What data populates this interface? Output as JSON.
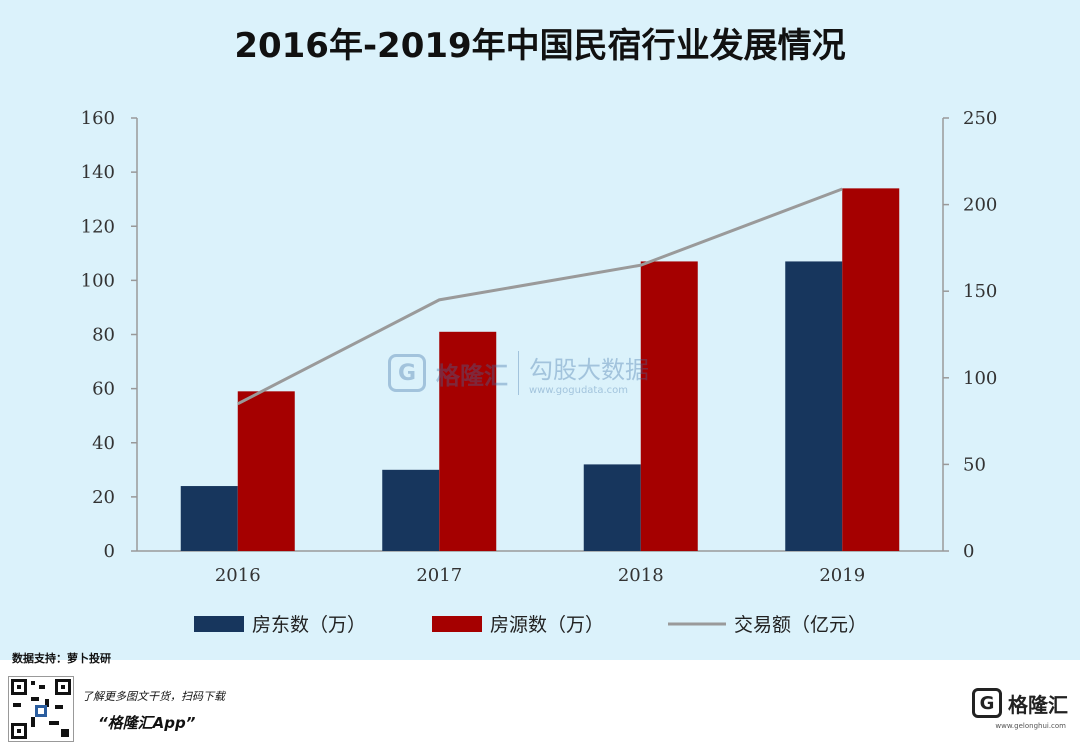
{
  "title": "2016年-2019年中国民宿行业发展情况",
  "chart_data": {
    "type": "bar",
    "title": "2016年-2019年中国民宿行业发展情况",
    "categories": [
      "2016",
      "2017",
      "2018",
      "2019"
    ],
    "series": [
      {
        "name": "房东数（万）",
        "type": "bar",
        "axis": "left",
        "color": "#17365d",
        "values": [
          24,
          30,
          32,
          107
        ]
      },
      {
        "name": "房源数（万）",
        "type": "bar",
        "axis": "left",
        "color": "#a50000",
        "values": [
          59,
          81,
          107,
          134
        ]
      },
      {
        "name": "交易额（亿元）",
        "type": "line",
        "axis": "right",
        "color": "#9a9a9a",
        "values": [
          85,
          145,
          165,
          209
        ]
      }
    ],
    "ylim_left": [
      0,
      160
    ],
    "yticks_left": [
      "0",
      "20",
      "40",
      "60",
      "80",
      "100",
      "120",
      "140",
      "160"
    ],
    "ylim_right": [
      0,
      250
    ],
    "yticks_right": [
      "0",
      "50",
      "100",
      "150",
      "200",
      "250"
    ],
    "grid": false,
    "legend_position": "bottom"
  },
  "watermark": {
    "brand": "格隆汇",
    "sub": "勾股大数据",
    "url": "www.gogudata.com"
  },
  "source": "数据支持：萝卜投研",
  "footer": {
    "promo": "了解更多图文干货，扫码下载",
    "app": "“格隆汇App”",
    "brand": "格隆汇",
    "brand_url": "www.gelonghui.com"
  }
}
